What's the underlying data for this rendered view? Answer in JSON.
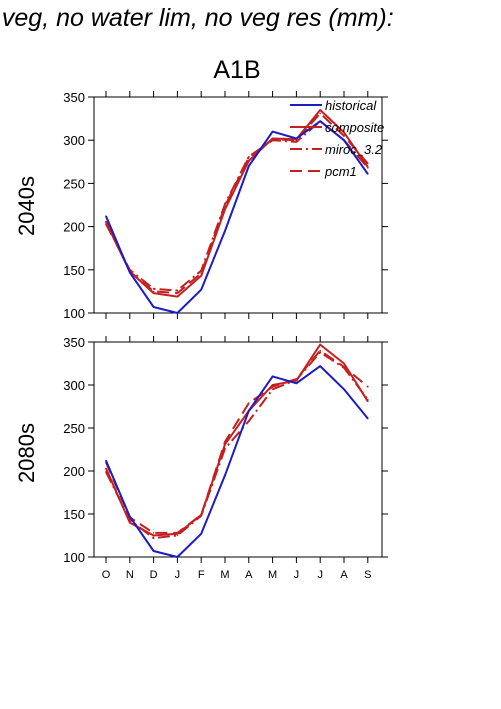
{
  "figure": {
    "title": "f veg, no water lim, no veg res (mm):",
    "scenario": "A1B",
    "row_labels": [
      "2040s",
      "2080s"
    ]
  },
  "colors": {
    "historical": "#1c1cc4",
    "projections": "#c42020"
  },
  "chart_data": [
    {
      "type": "line",
      "title": "2040s",
      "xlabel": "",
      "ylabel": "",
      "categories": [
        "O",
        "N",
        "D",
        "J",
        "F",
        "M",
        "A",
        "M",
        "J",
        "J",
        "A",
        "S"
      ],
      "ylim": [
        100,
        350
      ],
      "yticks": [
        100,
        150,
        200,
        250,
        300,
        350
      ],
      "grid": false,
      "legend_position": "top-right",
      "series": [
        {
          "name": "historical",
          "color": "#1c1cc4",
          "dash": "solid",
          "values": [
            212,
            147,
            107,
            100,
            127,
            195,
            270,
            310,
            302,
            322,
            300,
            261
          ]
        },
        {
          "name": "composite",
          "color": "#c42020",
          "dash": "solid",
          "values": [
            205,
            148,
            123,
            119,
            143,
            220,
            276,
            302,
            301,
            335,
            309,
            269
          ]
        },
        {
          "name": "miroc_3.2",
          "color": "#c42020",
          "dash": "dashdot",
          "values": [
            203,
            150,
            128,
            126,
            149,
            226,
            281,
            300,
            298,
            322,
            300,
            268
          ]
        },
        {
          "name": "pcm1",
          "color": "#c42020",
          "dash": "dash",
          "values": [
            206,
            148,
            125,
            123,
            146,
            224,
            280,
            301,
            300,
            331,
            305,
            273
          ]
        }
      ]
    },
    {
      "type": "line",
      "title": "2080s",
      "xlabel": "",
      "ylabel": "",
      "categories": [
        "O",
        "N",
        "D",
        "J",
        "F",
        "M",
        "A",
        "M",
        "J",
        "J",
        "A",
        "S"
      ],
      "ylim": [
        100,
        350
      ],
      "yticks": [
        100,
        150,
        200,
        250,
        300,
        350
      ],
      "grid": false,
      "series": [
        {
          "name": "historical",
          "color": "#1c1cc4",
          "dash": "solid",
          "values": [
            212,
            147,
            107,
            100,
            127,
            195,
            270,
            310,
            302,
            322,
            295,
            261
          ]
        },
        {
          "name": "composite",
          "color": "#c42020",
          "dash": "solid",
          "values": [
            203,
            140,
            125,
            127,
            149,
            231,
            270,
            300,
            305,
            347,
            325,
            281
          ]
        },
        {
          "name": "miroc_3.2",
          "color": "#c42020",
          "dash": "dashdot",
          "values": [
            199,
            143,
            122,
            125,
            148,
            226,
            258,
            295,
            306,
            338,
            320,
            283
          ]
        },
        {
          "name": "pcm1",
          "color": "#c42020",
          "dash": "dash",
          "values": [
            210,
            146,
            128,
            128,
            149,
            234,
            279,
            298,
            307,
            340,
            321,
            298
          ]
        }
      ]
    }
  ]
}
